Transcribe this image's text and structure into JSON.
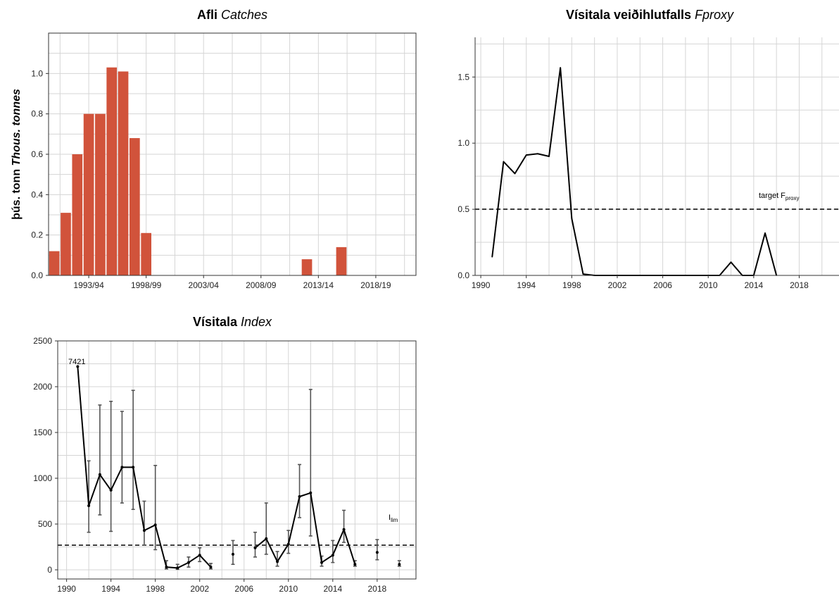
{
  "chart_data": [
    {
      "type": "bar",
      "title_bold": "Afli",
      "title_italic": "Catches",
      "ylabel_bold": "þús. tonn",
      "ylabel_italic": "Thous. tonnes",
      "xlabel": "",
      "bar_color": "#D1533B",
      "ylim": [
        0,
        1.2
      ],
      "yticks": [
        0.0,
        0.2,
        0.4,
        0.6,
        0.8,
        1.0
      ],
      "xtick_labels": [
        "1993/94",
        "1998/99",
        "2003/04",
        "2008/09",
        "2013/14",
        "2018/19"
      ],
      "xtick_positions": [
        1993,
        1998,
        2003,
        2008,
        2013,
        2018
      ],
      "xlim": [
        1989.5,
        2021.5
      ],
      "grid": true,
      "bars": [
        {
          "x": 1990,
          "value": 0.12
        },
        {
          "x": 1991,
          "value": 0.31
        },
        {
          "x": 1992,
          "value": 0.6
        },
        {
          "x": 1993,
          "value": 0.8
        },
        {
          "x": 1994,
          "value": 0.8
        },
        {
          "x": 1995,
          "value": 1.03
        },
        {
          "x": 1996,
          "value": 1.01
        },
        {
          "x": 1997,
          "value": 0.68
        },
        {
          "x": 1998,
          "value": 0.21
        },
        {
          "x": 1999,
          "value": 0
        },
        {
          "x": 2000,
          "value": 0
        },
        {
          "x": 2001,
          "value": 0
        },
        {
          "x": 2002,
          "value": 0
        },
        {
          "x": 2003,
          "value": 0
        },
        {
          "x": 2004,
          "value": 0
        },
        {
          "x": 2005,
          "value": 0
        },
        {
          "x": 2006,
          "value": 0
        },
        {
          "x": 2007,
          "value": 0
        },
        {
          "x": 2008,
          "value": 0
        },
        {
          "x": 2009,
          "value": 0
        },
        {
          "x": 2010,
          "value": 0
        },
        {
          "x": 2011,
          "value": 0
        },
        {
          "x": 2012,
          "value": 0.08
        },
        {
          "x": 2013,
          "value": 0
        },
        {
          "x": 2014,
          "value": 0
        },
        {
          "x": 2015,
          "value": 0.14
        },
        {
          "x": 2016,
          "value": 0
        },
        {
          "x": 2017,
          "value": 0
        },
        {
          "x": 2018,
          "value": 0
        },
        {
          "x": 2019,
          "value": 0
        },
        {
          "x": 2020,
          "value": 0
        }
      ]
    },
    {
      "type": "line",
      "title_bold": "Vísitala veiðihlutfalls",
      "title_italic": "Fproxy",
      "xlabel": "",
      "ylabel": "",
      "line_color": "#000000",
      "ylim": [
        0,
        1.8
      ],
      "xlim": [
        1989.5,
        2021.5
      ],
      "yticks": [
        0.0,
        0.5,
        1.0,
        1.5
      ],
      "xticks": [
        1990,
        1994,
        1998,
        2002,
        2006,
        2010,
        2014,
        2018
      ],
      "grid": true,
      "reference_line": {
        "y": 0.5,
        "label": "target F",
        "label_sub": "proxy"
      },
      "x": [
        1991,
        1992,
        1993,
        1994,
        1995,
        1996,
        1997,
        1998,
        1999,
        2000,
        2001,
        2002,
        2003,
        2004,
        2005,
        2006,
        2007,
        2008,
        2009,
        2010,
        2011,
        2012,
        2013,
        2014,
        2015,
        2016
      ],
      "y": [
        0.14,
        0.86,
        0.77,
        0.91,
        0.92,
        0.9,
        1.57,
        0.43,
        0.01,
        0,
        0,
        0,
        0,
        0,
        0,
        0,
        0,
        0,
        0,
        0,
        0,
        0.1,
        0,
        0,
        0.32,
        0
      ]
    },
    {
      "type": "line",
      "title_bold": "Vísitala",
      "title_italic": "Index",
      "xlabel": "",
      "ylabel": "",
      "line_color": "#000000",
      "errorbar_color": "#555555",
      "ylim": [
        -100,
        2500
      ],
      "xlim": [
        1989.2,
        2021.5
      ],
      "yticks": [
        0,
        500,
        1000,
        1500,
        2000,
        2500
      ],
      "xticks": [
        1990,
        1994,
        1998,
        2002,
        2006,
        2010,
        2014,
        2018
      ],
      "grid": true,
      "reference_line": {
        "y": 275,
        "label": "I",
        "label_sub": "lim"
      },
      "annotations": [
        {
          "x": 1991,
          "text": "7421"
        }
      ],
      "x": [
        1991,
        1992,
        1993,
        1994,
        1995,
        1996,
        1997,
        1998,
        1999,
        2000,
        2001,
        2002,
        2003,
        2004,
        2005,
        2006,
        2007,
        2008,
        2009,
        2010,
        2011,
        2012,
        2013,
        2014,
        2015,
        2016,
        2017,
        2018,
        2019,
        2020
      ],
      "y": [
        2220,
        700,
        1040,
        870,
        1120,
        1120,
        430,
        490,
        30,
        20,
        80,
        160,
        30,
        null,
        170,
        null,
        240,
        340,
        90,
        280,
        800,
        840,
        80,
        160,
        440,
        60,
        null,
        190,
        null,
        60
      ],
      "lower": [
        null,
        410,
        600,
        420,
        730,
        660,
        270,
        220,
        10,
        5,
        30,
        90,
        10,
        null,
        60,
        null,
        140,
        170,
        40,
        180,
        570,
        370,
        40,
        80,
        300,
        40,
        null,
        110,
        null,
        40
      ],
      "upper": [
        null,
        1190,
        1800,
        1840,
        1730,
        1960,
        750,
        1140,
        100,
        60,
        140,
        240,
        70,
        null,
        320,
        null,
        410,
        730,
        200,
        430,
        1150,
        1970,
        150,
        320,
        650,
        100,
        null,
        330,
        null,
        100
      ]
    }
  ]
}
